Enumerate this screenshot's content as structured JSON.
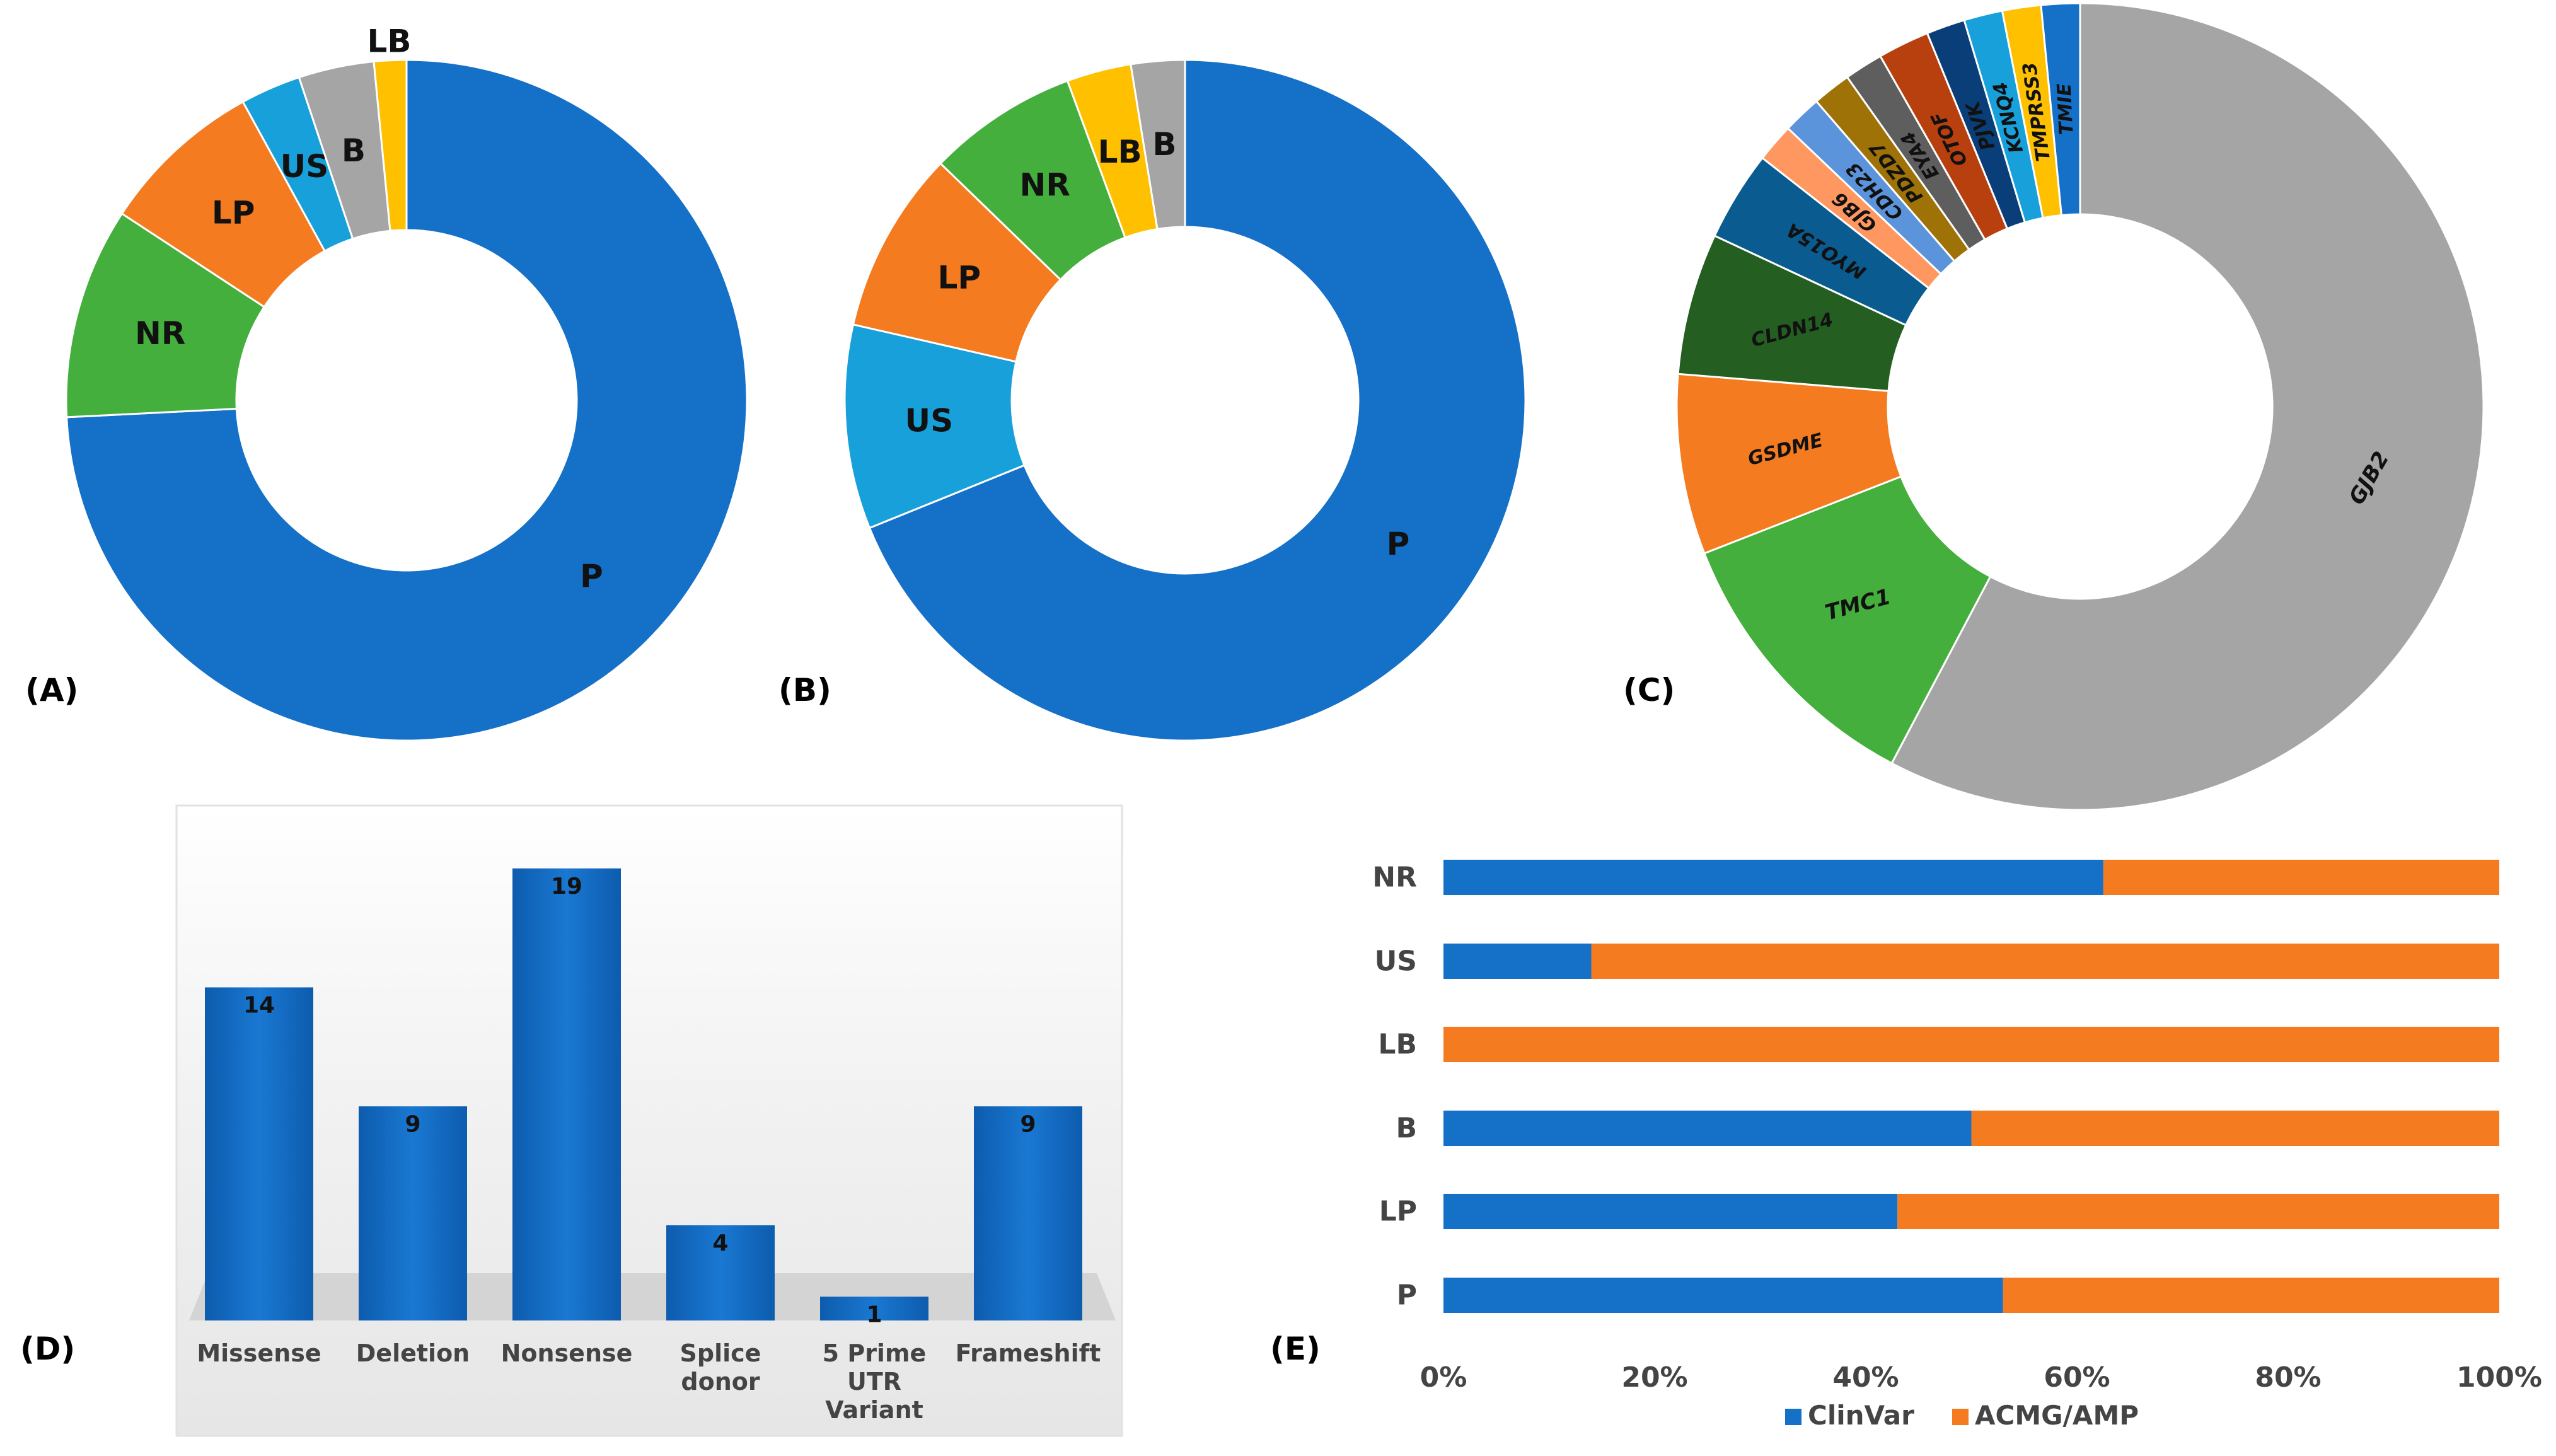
{
  "panel_labels": {
    "a": "(A)",
    "b": "(B)",
    "c": "(C)",
    "d": "(D)",
    "e": "(E)"
  },
  "colors": {
    "blue": "#1570C8",
    "green": "#44AF3C",
    "orange": "#F47B20",
    "lightblue": "#18A0DB",
    "gray": "#A5A5A5",
    "yellow": "#FFC000",
    "darkgreen": "#245E20",
    "navy": "#0A5B8F",
    "salmon": "#FF9860",
    "lightsteel": "#5C94DC",
    "olive": "#9E7206",
    "darkgray": "#5E5E5E",
    "rust": "#B83F0E",
    "darknavy": "#0A3E78",
    "clinvar": "#1570C8",
    "acmg": "#F47B20"
  },
  "chart_data": [
    {
      "type": "pie",
      "title": "(A)",
      "donut": true,
      "labels": [
        "P",
        "NR",
        "LP",
        "US",
        "B",
        "LB"
      ],
      "values": [
        72.5,
        9.8,
        7.6,
        2.8,
        3.5,
        1.5
      ],
      "colors": [
        "blue",
        "green",
        "orange",
        "lightblue",
        "gray",
        "yellow"
      ]
    },
    {
      "type": "pie",
      "title": "(B)",
      "donut": true,
      "labels": [
        "P",
        "US",
        "LP",
        "NR",
        "LB",
        "B"
      ],
      "values": [
        67.5,
        9.5,
        8.5,
        7.0,
        3.0,
        2.5
      ],
      "colors": [
        "blue",
        "lightblue",
        "orange",
        "green",
        "yellow",
        "gray"
      ]
    },
    {
      "type": "pie",
      "title": "(C)",
      "donut": true,
      "labels": [
        "GJB2",
        "TMC1",
        "GSDME",
        "CLDN14",
        "MYO15A",
        "GJB6",
        "CDH23",
        "PDZD7",
        "EYA4",
        "OTOF",
        "PJVK",
        "KCNQ4",
        "TMPRSS3",
        "TMIE"
      ],
      "values": [
        56.0,
        11.0,
        7.0,
        5.5,
        3.5,
        1.5,
        1.5,
        1.5,
        1.5,
        2.0,
        1.5,
        1.5,
        1.5,
        1.5
      ],
      "colors": [
        "gray",
        "green",
        "orange",
        "darkgreen",
        "navy",
        "salmon",
        "lightsteel",
        "olive",
        "darkgray",
        "rust",
        "darknavy",
        "lightblue",
        "yellow",
        "blue"
      ]
    },
    {
      "type": "bar",
      "title": "(D)",
      "categories": [
        "Missense",
        "Deletion",
        "Nonsense",
        "Splice donor",
        "5 Prime UTR Variant",
        "Frameshift"
      ],
      "category_lines": [
        [
          "Missense"
        ],
        [
          "Deletion"
        ],
        [
          "Nonsense"
        ],
        [
          "Splice",
          "donor"
        ],
        [
          "5 Prime",
          "UTR",
          "Variant"
        ],
        [
          "Frameshift"
        ]
      ],
      "values": [
        14,
        9,
        19,
        4,
        1,
        9
      ],
      "ylim": [
        0,
        20
      ]
    },
    {
      "type": "bar",
      "orientation": "horizontal",
      "stacked": "percent",
      "title": "(E)",
      "categories": [
        "NR",
        "US",
        "LB",
        "B",
        "LP",
        "P"
      ],
      "series": [
        {
          "name": "ClinVar",
          "values": [
            62.5,
            14,
            0,
            50,
            43,
            53
          ]
        },
        {
          "name": "ACMG/AMP",
          "values": [
            37.5,
            86,
            100,
            50,
            57,
            47
          ]
        }
      ],
      "xticks": [
        "0%",
        "20%",
        "40%",
        "60%",
        "80%",
        "100%"
      ],
      "xlim": [
        0,
        100
      ],
      "legend": "bottom"
    }
  ]
}
